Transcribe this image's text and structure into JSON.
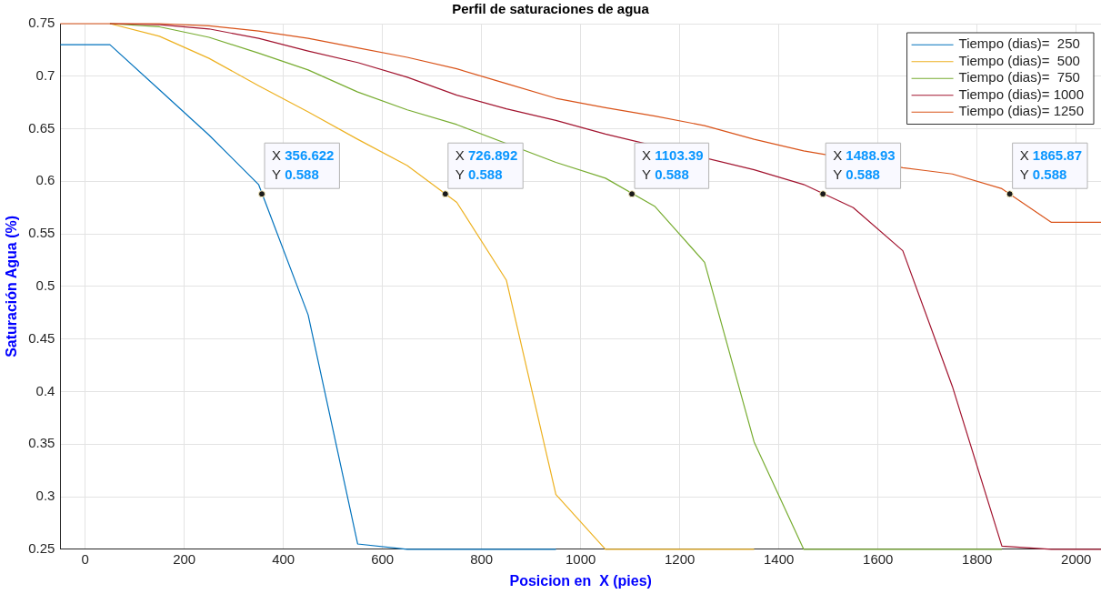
{
  "chart_data": {
    "type": "line",
    "title": "Perfil de saturaciones de agua",
    "xlabel": "Posicion en  X (pies)",
    "ylabel": "Saturación Agua (%)",
    "x": [
      -50,
      50,
      150,
      250,
      350,
      450,
      550,
      650,
      750,
      850,
      950,
      1050,
      1150,
      1250,
      1350,
      1450,
      1550,
      1650,
      1750,
      1850,
      1950,
      2050
    ],
    "series": [
      {
        "name": "Tiempo (dias)=  250",
        "color": "#0072bd",
        "values": [
          0.73,
          0.73,
          0.687,
          0.644,
          0.597,
          0.473,
          0.255,
          0.25,
          0.25,
          0.25,
          0.25,
          null,
          null,
          null,
          null,
          null,
          null,
          null,
          null,
          null,
          null,
          null
        ]
      },
      {
        "name": "Tiempo (dias)=  500",
        "color": "#edb120",
        "values": [
          null,
          0.75,
          0.738,
          0.717,
          0.691,
          0.666,
          0.64,
          0.615,
          0.58,
          0.506,
          0.302,
          0.25,
          0.25,
          0.25,
          0.25,
          null,
          null,
          null,
          null,
          null,
          null,
          null
        ]
      },
      {
        "name": "Tiempo (dias)=  750",
        "color": "#77ac30",
        "values": [
          null,
          0.75,
          0.747,
          0.737,
          0.722,
          0.706,
          0.685,
          0.668,
          0.654,
          null,
          0.618,
          0.603,
          0.576,
          0.523,
          0.352,
          0.25,
          0.25,
          0.25,
          0.25,
          0.25,
          null,
          null
        ]
      },
      {
        "name": "Tiempo (dias)= 1000",
        "color": "#a2142f",
        "values": [
          null,
          0.75,
          0.749,
          0.745,
          0.736,
          0.724,
          0.713,
          0.699,
          0.682,
          0.669,
          0.658,
          0.645,
          null,
          null,
          0.611,
          0.597,
          0.575,
          0.534,
          0.405,
          0.253,
          0.25,
          0.25
        ]
      },
      {
        "name": "Tiempo (dias)= 1250",
        "color": "#d95319",
        "values": [
          0.75,
          0.75,
          0.75,
          0.748,
          0.743,
          0.736,
          0.727,
          0.718,
          0.707,
          0.693,
          0.679,
          0.67,
          0.662,
          0.653,
          0.64,
          0.629,
          null,
          0.613,
          0.607,
          0.593,
          0.561,
          0.561
        ]
      }
    ],
    "xlim": [
      -50,
      2050
    ],
    "xticks": [
      0,
      200,
      400,
      600,
      800,
      1000,
      1200,
      1400,
      1600,
      1800,
      2000
    ],
    "ylim": [
      0.25,
      0.75
    ],
    "yticks": [
      0.25,
      0.3,
      0.35,
      0.4,
      0.45,
      0.5,
      0.55,
      0.6,
      0.65,
      0.7,
      0.75
    ],
    "grid": true,
    "legend": "top right",
    "annotations": [
      {
        "text": "X 356.622\nY 0.588",
        "x": 356.622,
        "y": 0.588
      },
      {
        "text": "X 726.892\nY 0.588",
        "x": 726.892,
        "y": 0.588
      },
      {
        "text": "X 1103.39\nY 0.588",
        "x": 1103.39,
        "y": 0.588
      },
      {
        "text": "X 1488.93\nY 0.588",
        "x": 1488.93,
        "y": 0.588
      },
      {
        "text": "X 1865.87\nY 0.588",
        "x": 1865.87,
        "y": 0.588
      }
    ]
  }
}
